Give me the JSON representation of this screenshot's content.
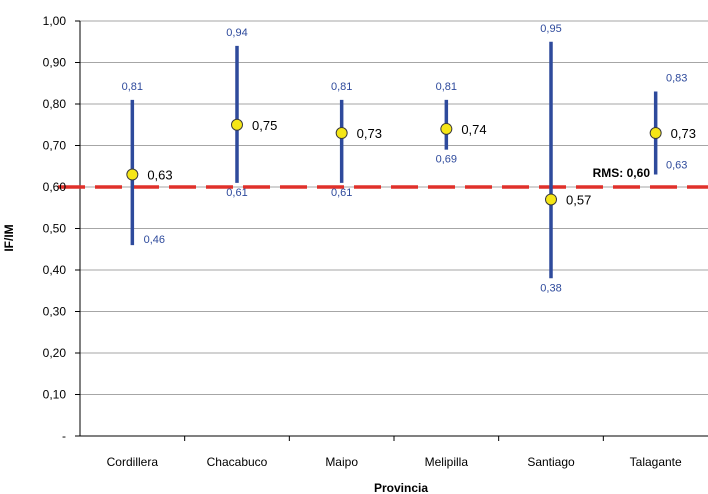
{
  "chart_data": {
    "type": "scatter",
    "xlabel": "Provincia",
    "ylabel": "IF/IM",
    "ylim": [
      0,
      1
    ],
    "yticks": [
      {
        "value": 0.0,
        "label": "-"
      },
      {
        "value": 0.1,
        "label": "0,10"
      },
      {
        "value": 0.2,
        "label": "0,20"
      },
      {
        "value": 0.3,
        "label": "0,30"
      },
      {
        "value": 0.4,
        "label": "0,40"
      },
      {
        "value": 0.5,
        "label": "0,50"
      },
      {
        "value": 0.6,
        "label": "0,60"
      },
      {
        "value": 0.7,
        "label": "0,70"
      },
      {
        "value": 0.8,
        "label": "0,80"
      },
      {
        "value": 0.9,
        "label": "0,90"
      },
      {
        "value": 1.0,
        "label": "1,00"
      }
    ],
    "grid": true,
    "categories": [
      "Cordillera",
      "Chacabuco",
      "Maipo",
      "Melipilla",
      "Santiago",
      "Talagante"
    ],
    "points": [
      {
        "value": 0.63,
        "label": "0,63",
        "min": 0.46,
        "min_label": "0,46",
        "max": 0.81,
        "max_label": "0,81"
      },
      {
        "value": 0.75,
        "label": "0,75",
        "min": 0.61,
        "min_label": "0,61",
        "max": 0.94,
        "max_label": "0,94"
      },
      {
        "value": 0.73,
        "label": "0,73",
        "min": 0.61,
        "min_label": "0,61",
        "max": 0.81,
        "max_label": "0,81"
      },
      {
        "value": 0.74,
        "label": "0,74",
        "min": 0.69,
        "min_label": "0,69",
        "max": 0.81,
        "max_label": "0,81"
      },
      {
        "value": 0.57,
        "label": "0,57",
        "min": 0.38,
        "min_label": "0,38",
        "max": 0.95,
        "max_label": "0,95"
      },
      {
        "value": 0.73,
        "label": "0,73",
        "min": 0.63,
        "min_label": "0,63",
        "max": 0.83,
        "max_label": "0,83"
      }
    ],
    "reference_line": {
      "value": 0.6,
      "label_prefix": "RMS: ",
      "label_value": "0,60"
    },
    "colors": {
      "range_line": "#2e4a9c",
      "range_label": "#2e4a9c",
      "marker_fill": "#f5e616",
      "marker_stroke": "#3a3a3a",
      "reference_line": "#e0302a",
      "grid": "#a6a6a6",
      "text": "#000000"
    }
  }
}
